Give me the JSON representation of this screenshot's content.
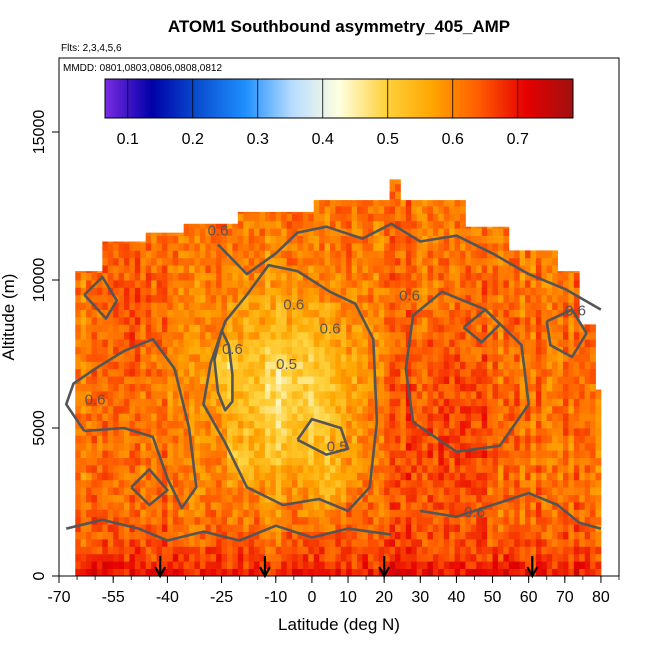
{
  "chart_data": {
    "type": "heatmap",
    "title": "ATOM1 Southbound asymmetry_405_AMP",
    "flights_note": "Flts: 2,3,4,5,6",
    "dates_note": "MMDD: 0801,0803,0806,0808,0812",
    "xlabel": "Latitude (deg N)",
    "ylabel": "Altitude (m)",
    "xlim": [
      -70,
      85
    ],
    "ylim": [
      0,
      17500
    ],
    "x_ticks": [
      -70,
      -55,
      -40,
      -25,
      -10,
      0,
      10,
      20,
      30,
      40,
      50,
      60,
      70,
      80
    ],
    "y_ticks": [
      0,
      5000,
      10000,
      15000
    ],
    "colorbar": {
      "range": [
        0.065,
        0.785
      ],
      "ticks": [
        0.1,
        0.2,
        0.3,
        0.4,
        0.5,
        0.6,
        0.7
      ],
      "stops": [
        "#7a2be2",
        "#0000a8",
        "#0a4fd0",
        "#1e90ff",
        "#b8dcff",
        "#ffffe0",
        "#ffd23c",
        "#ffa500",
        "#ff5a00",
        "#e60000",
        "#a01010"
      ]
    },
    "contour_levels": [
      {
        "value": "0.6",
        "positions": [
          [
            -26,
            11500
          ],
          [
            -5,
            9000
          ],
          [
            5,
            8200
          ],
          [
            -22,
            7500
          ],
          [
            -60,
            5800
          ],
          [
            73,
            8800
          ],
          [
            27,
            9300
          ],
          [
            45,
            2000
          ]
        ]
      },
      {
        "value": "0.5",
        "positions": [
          [
            -7,
            7000
          ],
          [
            7,
            4200
          ]
        ]
      }
    ],
    "arrow_latitudes": [
      -42,
      -13,
      20,
      61
    ]
  }
}
